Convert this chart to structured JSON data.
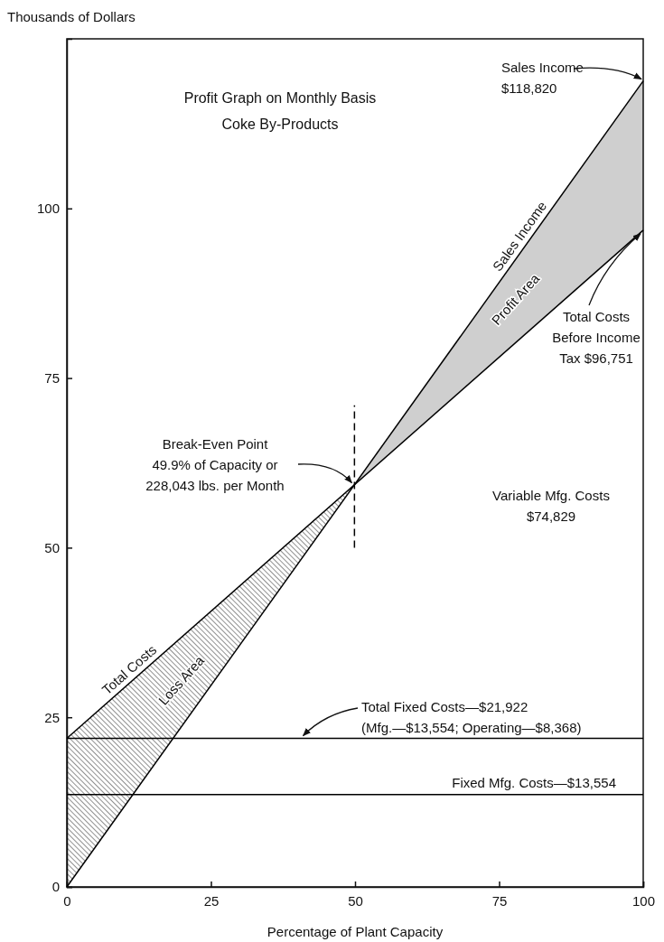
{
  "chart_data": {
    "type": "line",
    "title": "Profit Graph on Monthly Basis",
    "subtitle": "Coke By-Products",
    "xlabel": "Percentage of Plant Capacity",
    "ylabel": "Thousands of Dollars",
    "xlim": [
      0,
      100
    ],
    "ylim": [
      0,
      125
    ],
    "xticks": [
      0,
      25,
      50,
      75,
      100
    ],
    "yticks": [
      0,
      25,
      50,
      75,
      100
    ],
    "grid": false,
    "legend": false,
    "marker": "none",
    "series": [
      {
        "name": "Sales Income",
        "color": "#000000",
        "x": [
          0,
          100
        ],
        "values": [
          0,
          118.8
        ]
      },
      {
        "name": "Total Costs",
        "color": "#000000",
        "x": [
          0,
          100
        ],
        "values": [
          21.9,
          96.8
        ]
      },
      {
        "color": "#000000",
        "x": [
          0,
          100
        ],
        "values": [
          21.9,
          21.9
        ]
      },
      {
        "color": "#000000",
        "x": [
          0,
          100
        ],
        "values": [
          13.6,
          13.6
        ]
      },
      {
        "color": "#000000",
        "line_style": "dashed",
        "x": [
          49.9,
          49.9
        ],
        "values": [
          50,
          71
        ]
      }
    ],
    "annotations": [
      {
        "text": "Sales Income\n$118,820",
        "x": 100,
        "y": 118.8
      },
      {
        "text": "Total Costs\nBefore Income\nTax $96,751",
        "x": 100,
        "y": 96.8
      },
      {
        "text": "Break-Even Point\n49.9% of Capacity or\n228,043 lbs. per Month",
        "x": 49.9,
        "y": 59.3
      },
      "Variable Mfg. Costs\n$74,829",
      {
        "text": "Total Fixed Costs—$21,922\n(Mfg.—$13,554; Operating—$8,368)",
        "x": 41,
        "y": 21.9
      },
      {
        "text": "Fixed Mfg. Costs—$13,554",
        "x": 100,
        "y": 13.6
      },
      "Profit Area",
      "Loss Area"
    ]
  }
}
